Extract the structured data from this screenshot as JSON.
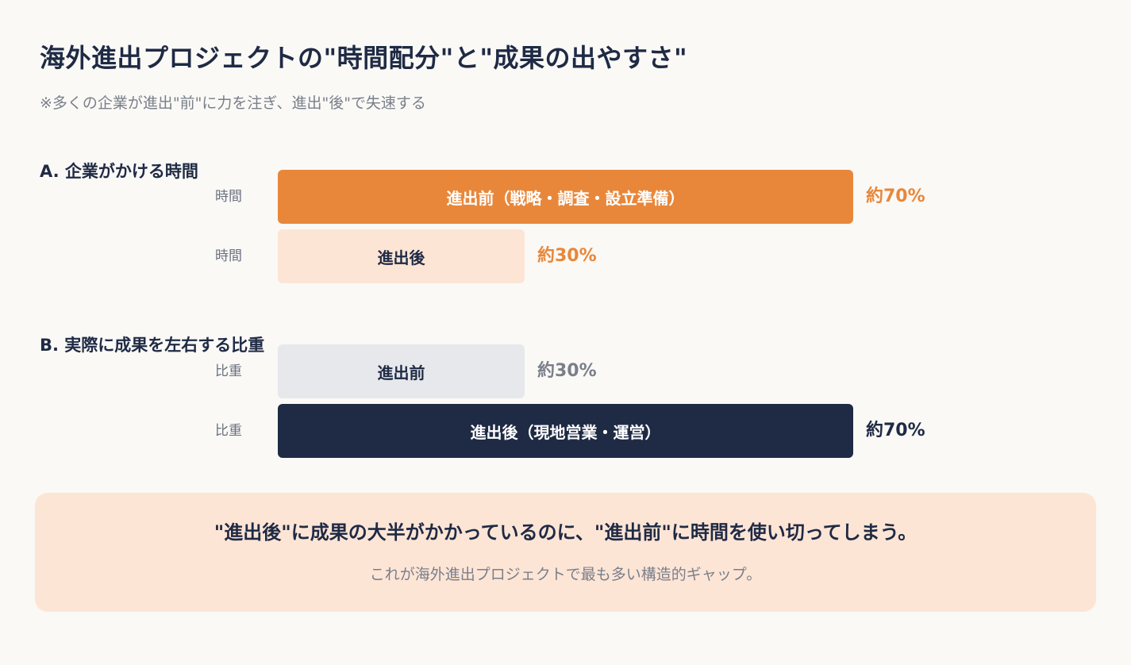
{
  "title": "海外進出プロジェクトの\"時間配分\"と\"成果の出やすさ\"",
  "subtitle": "※多くの企業が進出\"前\"に力を注ぎ、進出\"後\"で失速する",
  "chart_data": [
    {
      "type": "bar",
      "orientation": "horizontal",
      "title": "A. 企業がかける時間",
      "rows": [
        {
          "row_label": "時間",
          "bar_label": "進出前（戦略・調査・設立準備）",
          "value": 70,
          "value_label": "約70%",
          "color": "#e8873a",
          "text_color": "#ffffff",
          "value_color": "#e8873a"
        },
        {
          "row_label": "時間",
          "bar_label": "進出後",
          "value": 30,
          "value_label": "約30%",
          "color": "#fde5d6",
          "text_color": "#1f2a44",
          "value_color": "#e8873a"
        }
      ]
    },
    {
      "type": "bar",
      "orientation": "horizontal",
      "title": "B. 実際に成果を左右する比重",
      "rows": [
        {
          "row_label": "比重",
          "bar_label": "進出前",
          "value": 30,
          "value_label": "約30%",
          "color": "#e6e8ec",
          "text_color": "#1f2a44",
          "value_color": "#7a7f8a"
        },
        {
          "row_label": "比重",
          "bar_label": "進出後（現地営業・運営）",
          "value": 70,
          "value_label": "約70%",
          "color": "#1f2a44",
          "text_color": "#ffffff",
          "value_color": "#1f2a44"
        }
      ]
    }
  ],
  "callout": {
    "main": "\"進出後\"に成果の大半がかかっているのに、\"進出前\"に時間を使い切ってしまう。",
    "sub": "これが海外進出プロジェクトで最も多い構造的ギャップ。"
  }
}
